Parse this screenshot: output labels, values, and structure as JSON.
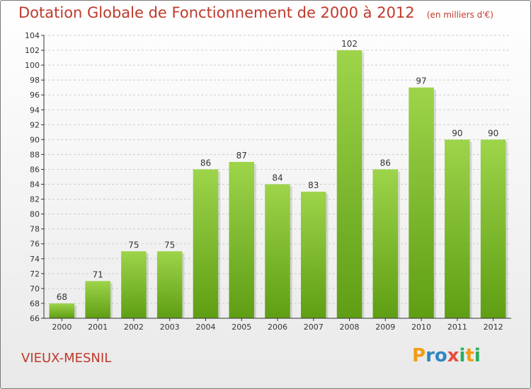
{
  "title": "Dotation Globale de Fonctionnement de 2000 à 2012",
  "subtitle": "(en milliers d'€)",
  "commune": "VIEUX-MESNIL",
  "logo": {
    "letters": [
      "P",
      "r",
      "o",
      "x",
      "i",
      "t",
      "i"
    ],
    "colors": [
      "#f39c12",
      "#2e86c1",
      "#2e86c1",
      "#e74c3c",
      "#27ae60",
      "#f39c12",
      "#27ae60"
    ]
  },
  "colors": {
    "title": "#c0392b",
    "bar_light": "#9dd44a",
    "bar_dark": "#5f9e14",
    "axis": "#333333",
    "grid": "#cccccc"
  },
  "chart_data": {
    "type": "bar",
    "categories": [
      "2000",
      "2001",
      "2002",
      "2003",
      "2004",
      "2005",
      "2006",
      "2007",
      "2008",
      "2009",
      "2010",
      "2011",
      "2012"
    ],
    "values": [
      68,
      71,
      75,
      75,
      86,
      87,
      84,
      83,
      102,
      86,
      97,
      90,
      90
    ],
    "ylim": [
      66,
      104
    ],
    "yticks": [
      66,
      68,
      70,
      72,
      74,
      76,
      78,
      80,
      82,
      84,
      86,
      88,
      90,
      92,
      94,
      96,
      98,
      100,
      102,
      104
    ],
    "grid": true,
    "data_labels": true
  }
}
